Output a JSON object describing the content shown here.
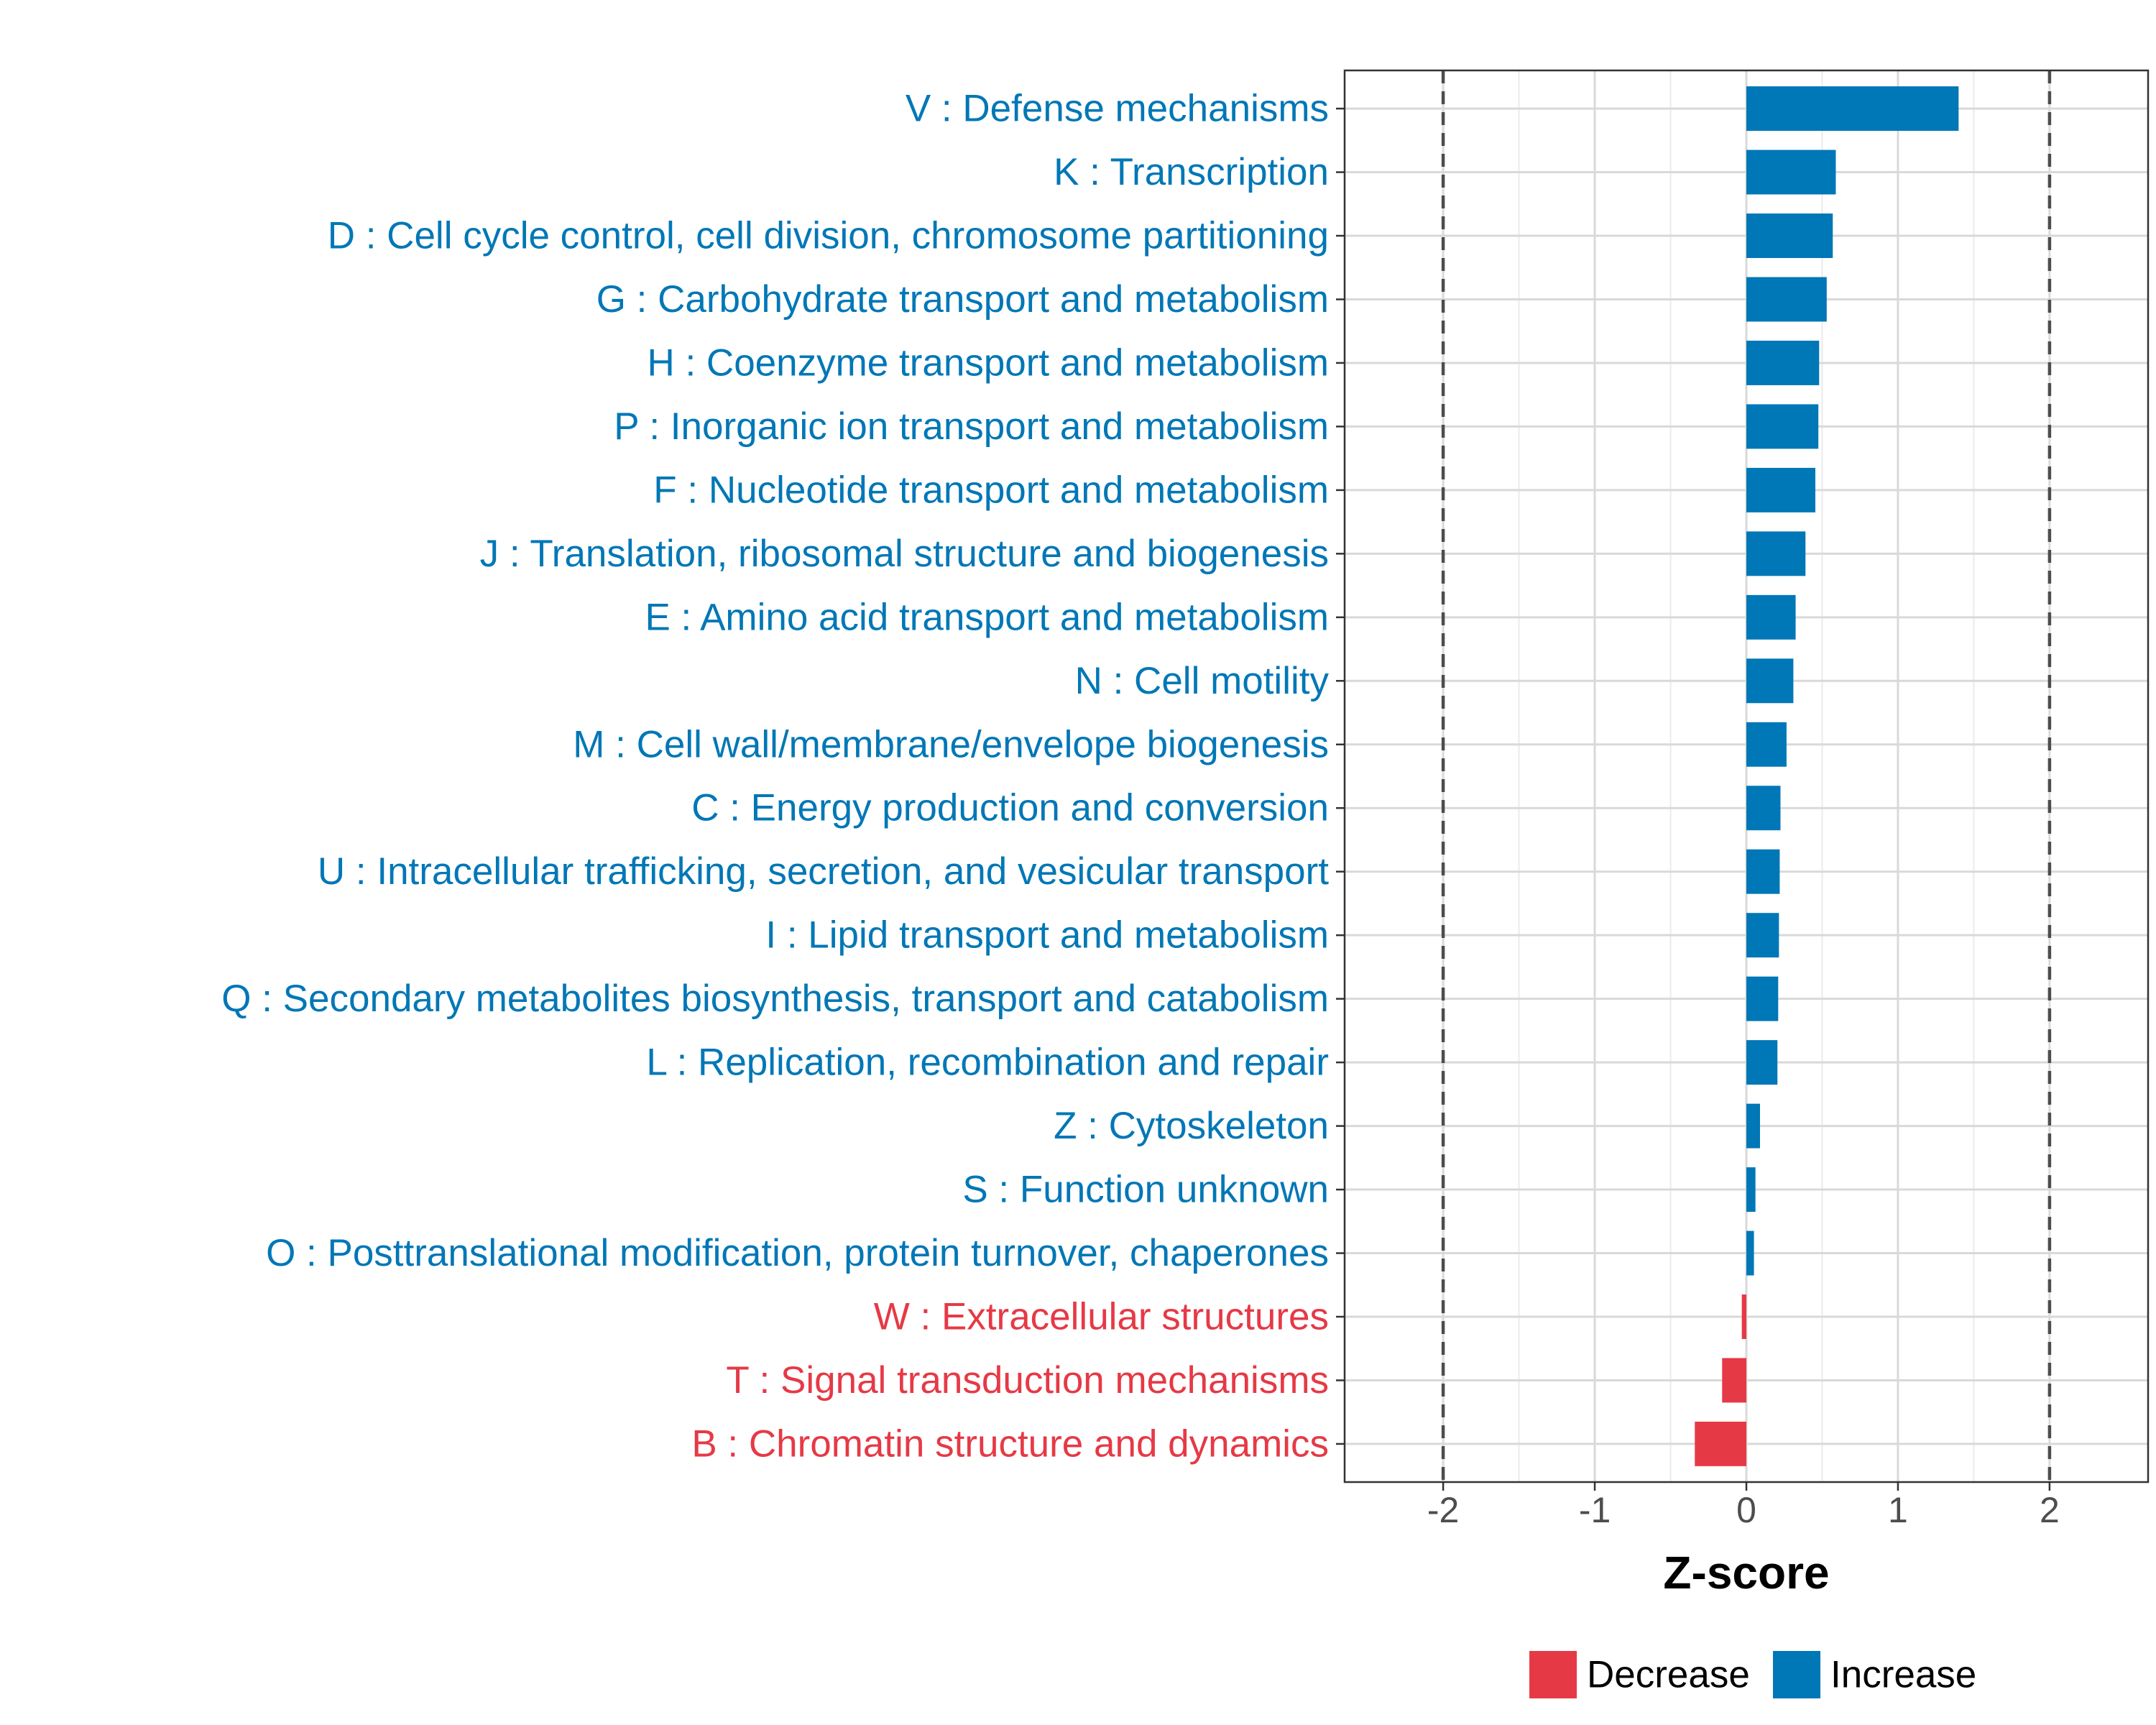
{
  "chart_data": {
    "type": "bar",
    "orientation": "horizontal",
    "title": "",
    "xlabel": "Z-score",
    "ylabel": "",
    "xlim": [
      -2.65,
      2.65
    ],
    "xticks": [
      -2,
      -1,
      0,
      1,
      2
    ],
    "xtick_labels": [
      "-2",
      "-1",
      "0",
      "1",
      "2"
    ],
    "reference_lines": [
      -2,
      2
    ],
    "grid": true,
    "legend_position": "bottom",
    "colors": {
      "Decrease": "#e63946",
      "Increase": "#0077b6"
    },
    "categories": [
      "V : Defense mechanisms",
      "K : Transcription",
      "D : Cell cycle control, cell division, chromosome partitioning",
      "G : Carbohydrate transport and metabolism",
      "H : Coenzyme transport and metabolism",
      "P : Inorganic ion transport and metabolism",
      "F : Nucleotide transport and metabolism",
      "J : Translation, ribosomal structure and biogenesis",
      "E : Amino acid transport and metabolism",
      "N : Cell motility",
      "M : Cell wall/membrane/envelope biogenesis",
      "C : Energy production and conversion",
      "U : Intracellular trafficking, secretion, and vesicular transport",
      "I : Lipid transport and metabolism",
      "Q : Secondary metabolites biosynthesis, transport and catabolism",
      "L : Replication, recombination and repair",
      "Z : Cytoskeleton",
      "S : Function unknown",
      "O : Posttranslational modification, protein turnover, chaperones",
      "W : Extracellular structures",
      "T : Signal transduction mechanisms",
      "B : Chromatin structure and dynamics"
    ],
    "values": [
      1.4,
      0.59,
      0.57,
      0.53,
      0.48,
      0.475,
      0.455,
      0.39,
      0.325,
      0.31,
      0.265,
      0.225,
      0.22,
      0.215,
      0.21,
      0.205,
      0.09,
      0.06,
      0.05,
      -0.03,
      -0.16,
      -0.34
    ],
    "groups": [
      "Increase",
      "Increase",
      "Increase",
      "Increase",
      "Increase",
      "Increase",
      "Increase",
      "Increase",
      "Increase",
      "Increase",
      "Increase",
      "Increase",
      "Increase",
      "Increase",
      "Increase",
      "Increase",
      "Increase",
      "Increase",
      "Increase",
      "Decrease",
      "Decrease",
      "Decrease"
    ],
    "legend": [
      {
        "label": "Decrease",
        "color": "#e63946"
      },
      {
        "label": "Increase",
        "color": "#0077b6"
      }
    ]
  }
}
